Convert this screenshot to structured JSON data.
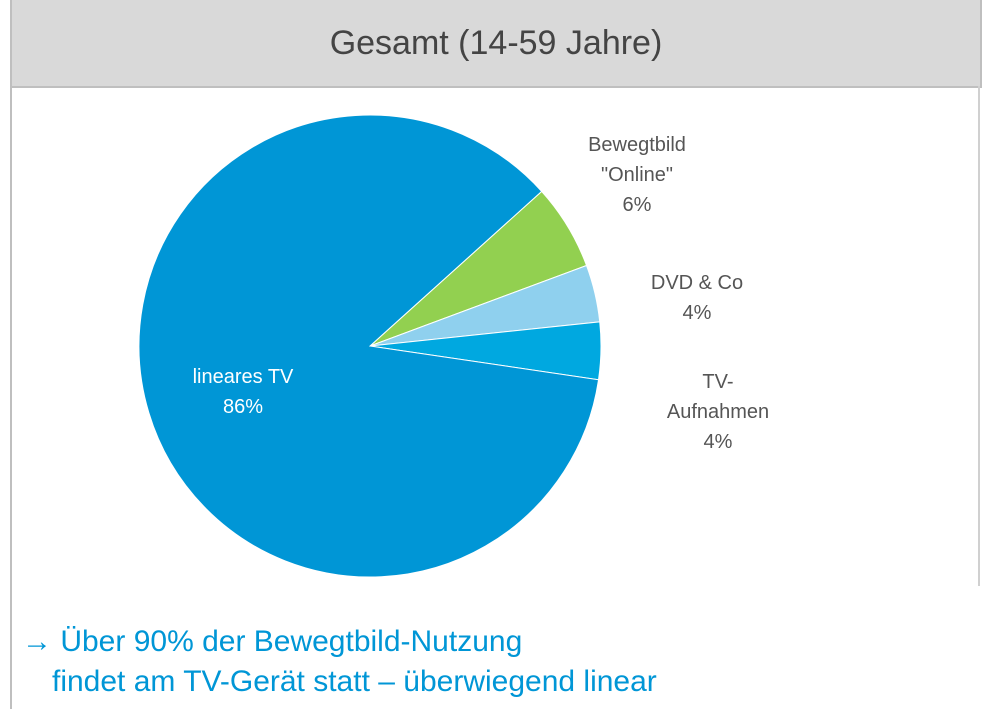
{
  "chart_data": {
    "type": "pie",
    "title": "Gesamt (14-59 Jahre)",
    "categories": [
      "Bewegtbild\n\"Online\"",
      "DVD & Co",
      "TV-\nAufnahmen",
      "lineares TV"
    ],
    "values": [
      6,
      4,
      4,
      86
    ],
    "value_labels": [
      "6%",
      "4%",
      "4%",
      "86%"
    ],
    "colors": [
      "#92d050",
      "#8fd0ee",
      "#00a8e0",
      "#0096d6"
    ],
    "annotation": [
      "→ Über 90% der Bewegtbild-Nutzung",
      "findet am TV-Gerät statt – überwiegend linear"
    ]
  }
}
